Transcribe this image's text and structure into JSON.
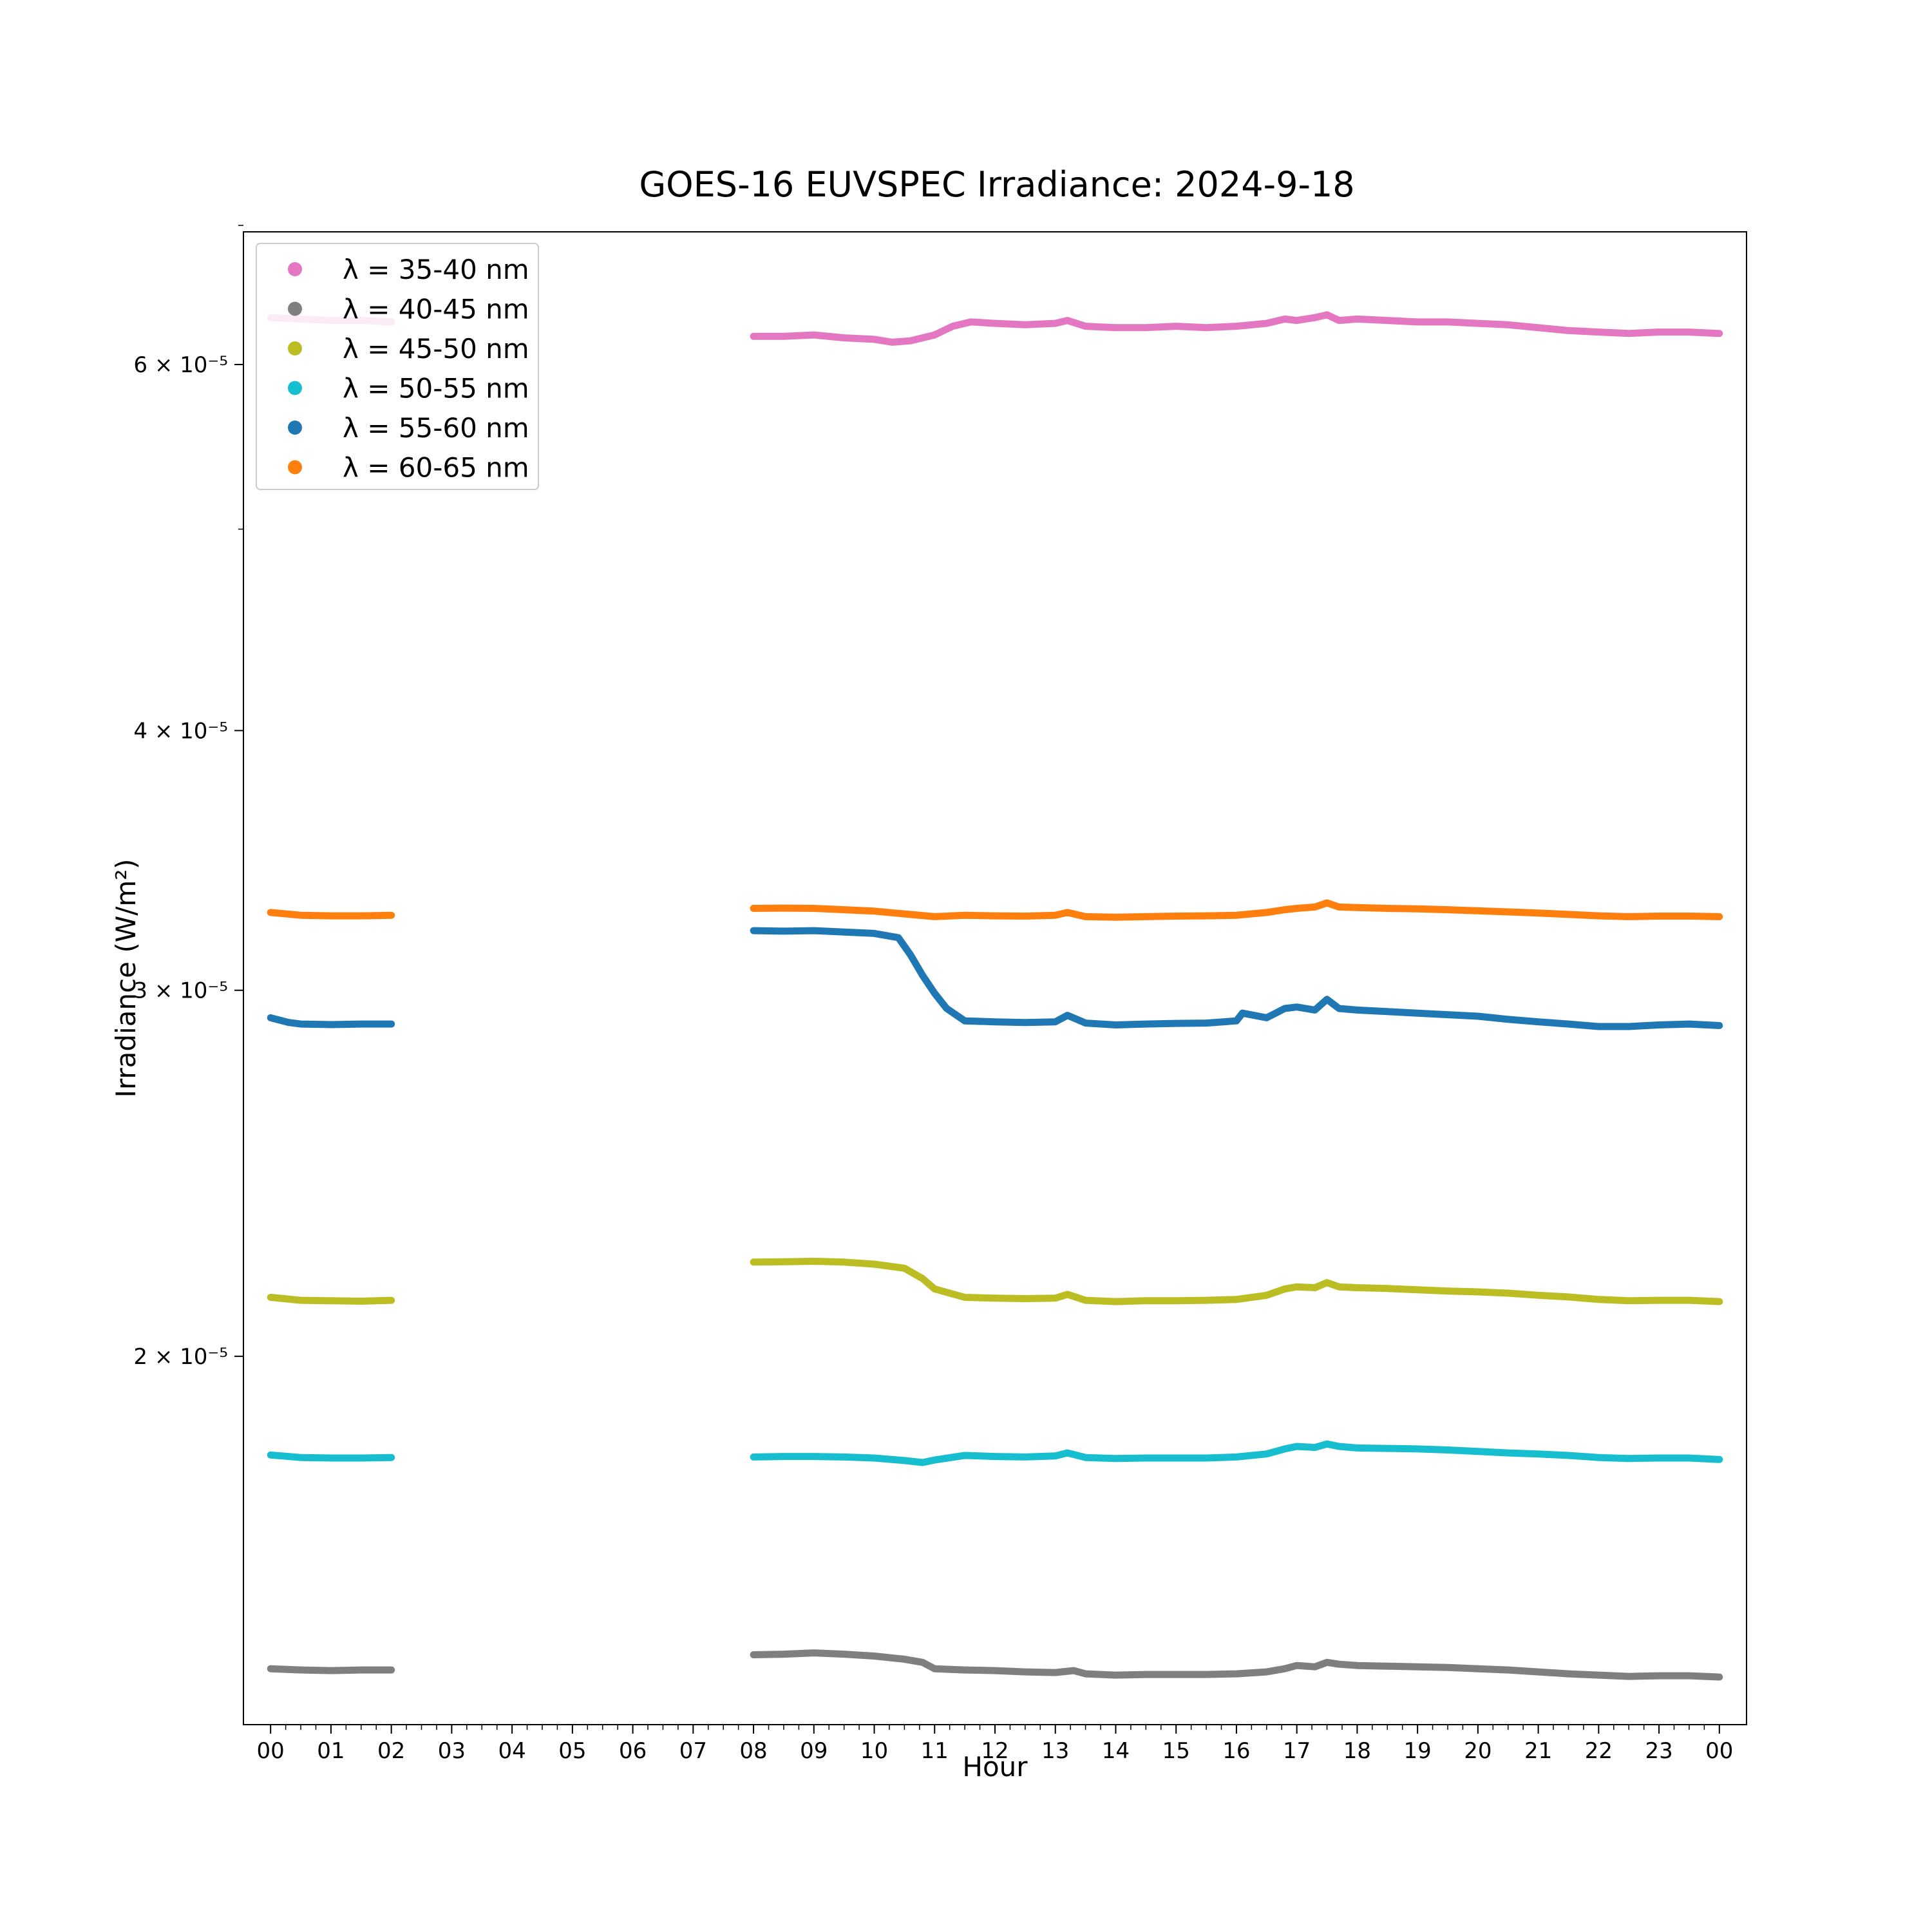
{
  "chart_data": {
    "type": "line",
    "title": "GOES-16 EUVSPEC Irradiance: 2024-9-18",
    "xlabel": "Hour",
    "ylabel": "Irradiance (W/m²)",
    "yscale": "log",
    "xlim": [
      -0.45,
      24.45
    ],
    "ylim": [
      1.33e-05,
      6.95e-05
    ],
    "grid": false,
    "legend_position": "top-left",
    "x_ticks": [
      {
        "value": 0,
        "label": "00"
      },
      {
        "value": 1,
        "label": "01"
      },
      {
        "value": 2,
        "label": "02"
      },
      {
        "value": 3,
        "label": "03"
      },
      {
        "value": 4,
        "label": "04"
      },
      {
        "value": 5,
        "label": "05"
      },
      {
        "value": 6,
        "label": "06"
      },
      {
        "value": 7,
        "label": "07"
      },
      {
        "value": 8,
        "label": "08"
      },
      {
        "value": 9,
        "label": "09"
      },
      {
        "value": 10,
        "label": "10"
      },
      {
        "value": 11,
        "label": "11"
      },
      {
        "value": 12,
        "label": "12"
      },
      {
        "value": 13,
        "label": "13"
      },
      {
        "value": 14,
        "label": "14"
      },
      {
        "value": 15,
        "label": "15"
      },
      {
        "value": 16,
        "label": "16"
      },
      {
        "value": 17,
        "label": "17"
      },
      {
        "value": 18,
        "label": "18"
      },
      {
        "value": 19,
        "label": "19"
      },
      {
        "value": 20,
        "label": "20"
      },
      {
        "value": 21,
        "label": "21"
      },
      {
        "value": 22,
        "label": "22"
      },
      {
        "value": 23,
        "label": "23"
      },
      {
        "value": 24,
        "label": "00"
      }
    ],
    "y_ticks": [
      {
        "value": 2e-05,
        "label": "2 × 10⁻⁵"
      },
      {
        "value": 3e-05,
        "label": "3 × 10⁻⁵"
      },
      {
        "value": 4e-05,
        "label": "4 × 10⁻⁵"
      },
      {
        "value": 6e-05,
        "label": "6 × 10⁻⁵"
      }
    ],
    "y_minor_ticks": [
      5e-05,
      7e-05
    ],
    "series": [
      {
        "name": "λ = 35-40 nm",
        "color": "#e377c2",
        "segments": [
          {
            "x": [
              0,
              0.5,
              1,
              1.5,
              2
            ],
            "y": [
              6.32e-05,
              6.31e-05,
              6.3e-05,
              6.3e-05,
              6.29e-05
            ]
          },
          {
            "x": [
              8,
              8.5,
              9,
              9.5,
              10,
              10.3,
              10.6,
              11,
              11.3,
              11.6,
              12,
              12.5,
              13,
              13.2,
              13.5,
              14,
              14.5,
              15,
              15.5,
              16,
              16.5,
              16.8,
              17,
              17.3,
              17.5,
              17.7,
              18,
              18.5,
              19,
              19.5,
              20,
              20.5,
              21,
              21.5,
              22,
              22.5,
              23,
              23.5,
              24
            ],
            "y": [
              6.19e-05,
              6.19e-05,
              6.2e-05,
              6.18e-05,
              6.17e-05,
              6.15e-05,
              6.16e-05,
              6.2e-05,
              6.26e-05,
              6.29e-05,
              6.28e-05,
              6.27e-05,
              6.28e-05,
              6.3e-05,
              6.26e-05,
              6.25e-05,
              6.25e-05,
              6.26e-05,
              6.25e-05,
              6.26e-05,
              6.28e-05,
              6.31e-05,
              6.3e-05,
              6.32e-05,
              6.34e-05,
              6.3e-05,
              6.31e-05,
              6.3e-05,
              6.29e-05,
              6.29e-05,
              6.28e-05,
              6.27e-05,
              6.25e-05,
              6.23e-05,
              6.22e-05,
              6.21e-05,
              6.22e-05,
              6.22e-05,
              6.21e-05
            ]
          }
        ]
      },
      {
        "name": "λ = 40-45 nm",
        "color": "#7f7f7f",
        "segments": [
          {
            "x": [
              0,
              0.5,
              1,
              1.5,
              2
            ],
            "y": [
              1.415e-05,
              1.413e-05,
              1.412e-05,
              1.413e-05,
              1.413e-05
            ]
          },
          {
            "x": [
              8,
              8.5,
              9,
              9.5,
              10,
              10.5,
              10.8,
              11,
              11.5,
              12,
              12.5,
              13,
              13.3,
              13.5,
              14,
              14.5,
              15,
              15.5,
              16,
              16.5,
              16.8,
              17,
              17.3,
              17.5,
              17.7,
              18,
              18.5,
              19,
              19.5,
              20,
              20.5,
              21,
              21.5,
              22,
              22.5,
              23,
              23.5,
              24
            ],
            "y": [
              1.437e-05,
              1.438e-05,
              1.44e-05,
              1.438e-05,
              1.435e-05,
              1.43e-05,
              1.425e-05,
              1.415e-05,
              1.413e-05,
              1.412e-05,
              1.41e-05,
              1.409e-05,
              1.412e-05,
              1.407e-05,
              1.405e-05,
              1.406e-05,
              1.406e-05,
              1.406e-05,
              1.407e-05,
              1.41e-05,
              1.415e-05,
              1.42e-05,
              1.418e-05,
              1.425e-05,
              1.422e-05,
              1.42e-05,
              1.419e-05,
              1.418e-05,
              1.417e-05,
              1.415e-05,
              1.413e-05,
              1.41e-05,
              1.407e-05,
              1.405e-05,
              1.403e-05,
              1.404e-05,
              1.404e-05,
              1.402e-05
            ]
          }
        ]
      },
      {
        "name": "λ = 45-50 nm",
        "color": "#bcbd22",
        "segments": [
          {
            "x": [
              0,
              0.5,
              1,
              1.5,
              2
            ],
            "y": [
              2.135e-05,
              2.128e-05,
              2.127e-05,
              2.126e-05,
              2.128e-05
            ]
          },
          {
            "x": [
              8,
              8.5,
              9,
              9.5,
              10,
              10.5,
              10.8,
              11,
              11.5,
              12,
              12.5,
              13,
              13.2,
              13.5,
              14,
              14.5,
              15,
              15.5,
              16,
              16.5,
              16.8,
              17,
              17.3,
              17.5,
              17.7,
              18,
              18.5,
              19,
              19.5,
              20,
              20.5,
              21,
              21.5,
              22,
              22.5,
              23,
              23.5,
              24
            ],
            "y": [
              2.22e-05,
              2.221e-05,
              2.222e-05,
              2.22e-05,
              2.215e-05,
              2.205e-05,
              2.18e-05,
              2.155e-05,
              2.135e-05,
              2.133e-05,
              2.132e-05,
              2.133e-05,
              2.142e-05,
              2.128e-05,
              2.125e-05,
              2.127e-05,
              2.127e-05,
              2.128e-05,
              2.13e-05,
              2.14e-05,
              2.155e-05,
              2.16e-05,
              2.158e-05,
              2.17e-05,
              2.16e-05,
              2.158e-05,
              2.156e-05,
              2.153e-05,
              2.15e-05,
              2.148e-05,
              2.145e-05,
              2.14e-05,
              2.136e-05,
              2.13e-05,
              2.127e-05,
              2.128e-05,
              2.128e-05,
              2.125e-05
            ]
          }
        ]
      },
      {
        "name": "λ = 50-55 nm",
        "color": "#17becf",
        "segments": [
          {
            "x": [
              0,
              0.5,
              1,
              1.5,
              2
            ],
            "y": [
              1.793e-05,
              1.788e-05,
              1.787e-05,
              1.787e-05,
              1.788e-05
            ]
          },
          {
            "x": [
              8,
              8.5,
              9,
              9.5,
              10,
              10.5,
              10.8,
              11,
              11.5,
              12,
              12.5,
              13,
              13.2,
              13.5,
              14,
              14.5,
              15,
              15.5,
              16,
              16.5,
              16.8,
              17,
              17.3,
              17.5,
              17.7,
              18,
              18.5,
              19,
              19.5,
              20,
              20.5,
              21,
              21.5,
              22,
              22.5,
              23,
              23.5,
              24
            ],
            "y": [
              1.789e-05,
              1.79e-05,
              1.79e-05,
              1.789e-05,
              1.787e-05,
              1.782e-05,
              1.778e-05,
              1.783e-05,
              1.792e-05,
              1.79e-05,
              1.789e-05,
              1.791e-05,
              1.797e-05,
              1.788e-05,
              1.786e-05,
              1.787e-05,
              1.787e-05,
              1.787e-05,
              1.789e-05,
              1.795e-05,
              1.805e-05,
              1.81e-05,
              1.808e-05,
              1.815e-05,
              1.81e-05,
              1.807e-05,
              1.806e-05,
              1.805e-05,
              1.803e-05,
              1.8e-05,
              1.797e-05,
              1.795e-05,
              1.792e-05,
              1.788e-05,
              1.786e-05,
              1.787e-05,
              1.787e-05,
              1.784e-05
            ]
          }
        ]
      },
      {
        "name": "λ = 55-60 nm",
        "color": "#1f77b4",
        "segments": [
          {
            "x": [
              0,
              0.3,
              0.5,
              1,
              1.5,
              2
            ],
            "y": [
              2.91e-05,
              2.895e-05,
              2.89e-05,
              2.888e-05,
              2.89e-05,
              2.89e-05
            ]
          },
          {
            "x": [
              8,
              8.5,
              9,
              9.5,
              10,
              10.4,
              10.6,
              10.8,
              11,
              11.2,
              11.5,
              12,
              12.5,
              13,
              13.2,
              13.5,
              14,
              14.5,
              15,
              15.5,
              16,
              16.1,
              16.5,
              16.8,
              17,
              17.3,
              17.5,
              17.7,
              18,
              18.5,
              19,
              19.5,
              20,
              20.5,
              21,
              21.5,
              22,
              22.5,
              23,
              23.5,
              24
            ],
            "y": [
              3.205e-05,
              3.203e-05,
              3.205e-05,
              3.2e-05,
              3.195e-05,
              3.18e-05,
              3.12e-05,
              3.05e-05,
              2.99e-05,
              2.94e-05,
              2.9e-05,
              2.897e-05,
              2.895e-05,
              2.897e-05,
              2.918e-05,
              2.893e-05,
              2.887e-05,
              2.89e-05,
              2.892e-05,
              2.893e-05,
              2.9e-05,
              2.925e-05,
              2.91e-05,
              2.94e-05,
              2.945e-05,
              2.935e-05,
              2.97e-05,
              2.94e-05,
              2.935e-05,
              2.93e-05,
              2.925e-05,
              2.92e-05,
              2.915e-05,
              2.905e-05,
              2.897e-05,
              2.89e-05,
              2.882e-05,
              2.882e-05,
              2.887e-05,
              2.89e-05,
              2.885e-05
            ]
          }
        ]
      },
      {
        "name": "λ = 60-65 nm",
        "color": "#ff7f0e",
        "segments": [
          {
            "x": [
              0,
              0.5,
              1,
              1.5,
              2
            ],
            "y": [
              3.27e-05,
              3.26e-05,
              3.258e-05,
              3.258e-05,
              3.26e-05
            ]
          },
          {
            "x": [
              8,
              8.5,
              9,
              9.5,
              10,
              10.5,
              11,
              11.5,
              12,
              12.5,
              13,
              13.2,
              13.5,
              14,
              14.5,
              15,
              15.5,
              16,
              16.5,
              16.8,
              17,
              17.3,
              17.5,
              17.7,
              18,
              18.5,
              19,
              19.5,
              20,
              20.5,
              21,
              21.5,
              22,
              22.5,
              23,
              23.5,
              24
            ],
            "y": [
              3.285e-05,
              3.286e-05,
              3.285e-05,
              3.28e-05,
              3.275e-05,
              3.265e-05,
              3.255e-05,
              3.26e-05,
              3.258e-05,
              3.257e-05,
              3.26e-05,
              3.27e-05,
              3.255e-05,
              3.253e-05,
              3.255e-05,
              3.257e-05,
              3.258e-05,
              3.26e-05,
              3.27e-05,
              3.28e-05,
              3.285e-05,
              3.29e-05,
              3.305e-05,
              3.29e-05,
              3.288e-05,
              3.285e-05,
              3.283e-05,
              3.28e-05,
              3.276e-05,
              3.272e-05,
              3.268e-05,
              3.263e-05,
              3.258e-05,
              3.255e-05,
              3.257e-05,
              3.257e-05,
              3.255e-05
            ]
          }
        ]
      }
    ]
  }
}
